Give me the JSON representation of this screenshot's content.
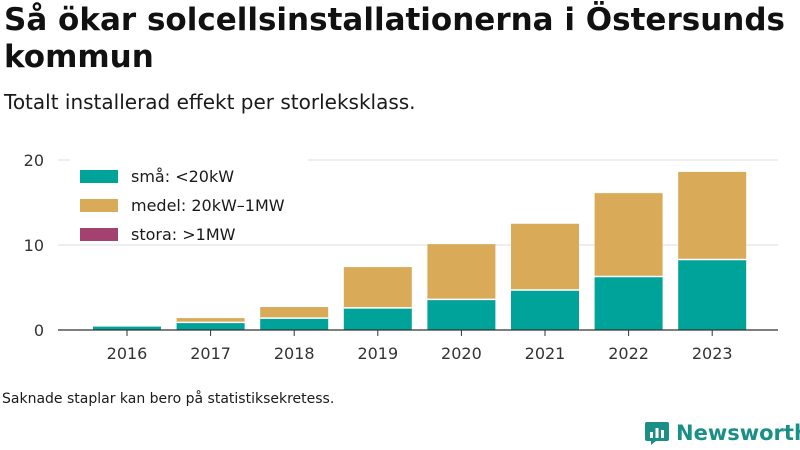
{
  "title": "Så ökar solcellsinstallationerna i Östersunds kommun",
  "subtitle": "Totalt installerad effekt per storleksklass.",
  "footnote": "Saknade staplar kan bero på statistiksekretess.",
  "brand": {
    "name": "Newsworthy",
    "icon": "newsworthy-logo-icon"
  },
  "colors": {
    "sma": "#00a39a",
    "medel": "#d9aa58",
    "stora": "#a3426f",
    "grid": "#dcdcdc",
    "axis": "#333333"
  },
  "chart_data": {
    "type": "bar",
    "stacked": true,
    "categories": [
      "2016",
      "2017",
      "2018",
      "2019",
      "2020",
      "2021",
      "2022",
      "2023"
    ],
    "series": [
      {
        "name": "små: <20kW",
        "color": "#00a39a",
        "values": [
          0.4,
          0.9,
          1.4,
          2.6,
          3.6,
          4.7,
          6.3,
          8.3
        ]
      },
      {
        "name": "medel: 20kW–1MW",
        "color": "#d9aa58",
        "values": [
          0.0,
          0.5,
          1.3,
          4.8,
          6.5,
          7.8,
          9.8,
          10.3
        ]
      },
      {
        "name": "stora: >1MW",
        "color": "#a3426f",
        "values": [
          0,
          0,
          0,
          0,
          0,
          0,
          0,
          0
        ]
      }
    ],
    "ylim": [
      0,
      20
    ],
    "yticks": [
      0,
      10,
      20
    ],
    "grid": true,
    "legend": "top-left",
    "xlabel": "",
    "ylabel": ""
  }
}
